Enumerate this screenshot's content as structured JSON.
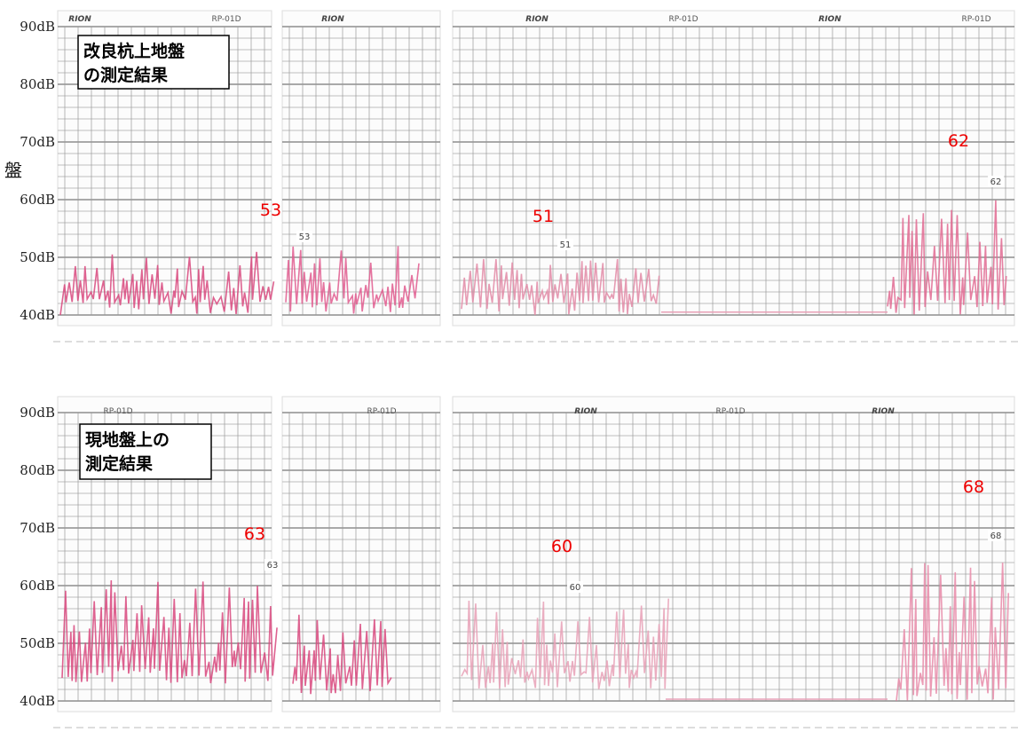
{
  "side_label": "盤",
  "panels": [
    {
      "y_labels": [
        "90dB",
        "80dB",
        "70dB",
        "60dB",
        "50dB",
        "40dB"
      ],
      "title_box": [
        "改良杭上地盤",
        "の測定結果"
      ],
      "headers": [
        "RION",
        "RP-01D",
        "RION",
        "RION",
        "RP-01D",
        "RION",
        "RP-01D"
      ],
      "peaks": [
        {
          "annotation": "53",
          "pen_mark": "53"
        },
        {
          "annotation": "51",
          "pen_mark": "51"
        },
        {
          "annotation": "62",
          "pen_mark": "62"
        }
      ]
    },
    {
      "y_labels": [
        "90dB",
        "80dB",
        "70dB",
        "60dB",
        "50dB",
        "40dB"
      ],
      "title_box": [
        "現地盤上の",
        "測定結果"
      ],
      "headers": [
        "RP-01D",
        "RP-01D",
        "RION",
        "RP-01D",
        "RION"
      ],
      "peaks": [
        {
          "annotation": "63",
          "pen_mark": "63"
        },
        {
          "annotation": "60",
          "pen_mark": "60"
        },
        {
          "annotation": "68",
          "pen_mark": "68"
        }
      ]
    }
  ]
}
